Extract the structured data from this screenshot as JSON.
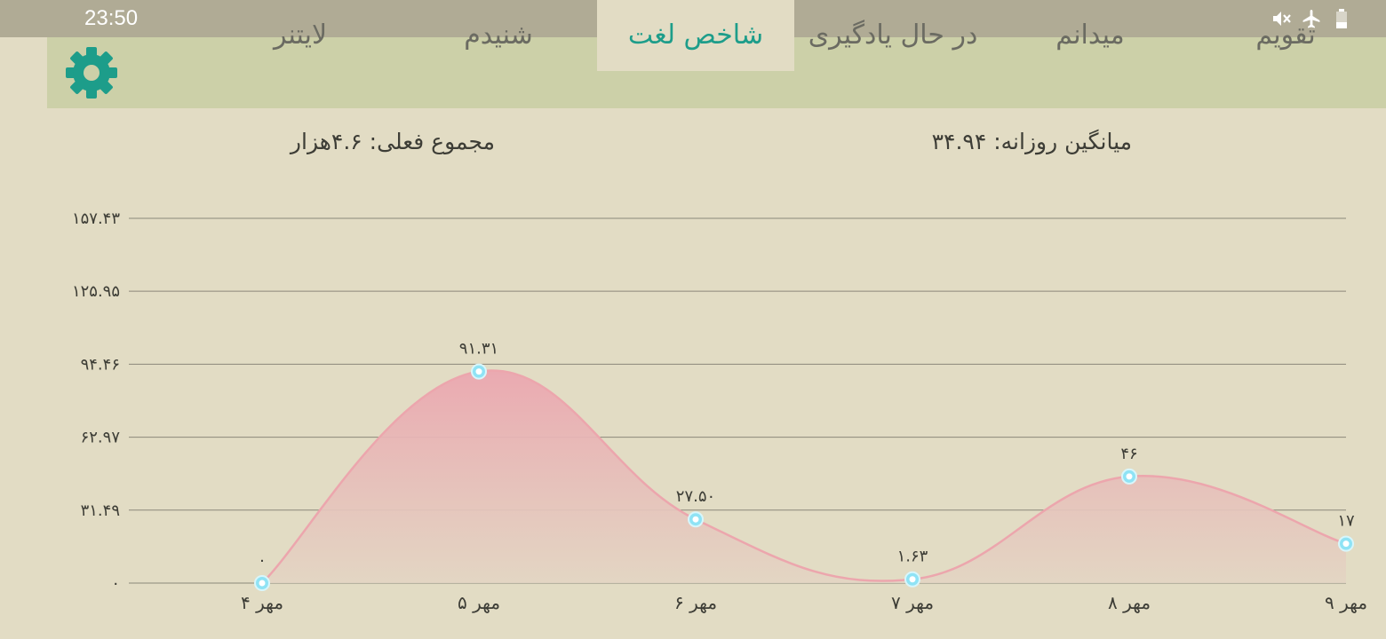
{
  "status_bar": {
    "time": "23:50",
    "icons": [
      "mute-icon",
      "airplane-mode-icon",
      "battery-icon"
    ]
  },
  "tabs": [
    {
      "label": "تقویم",
      "active": false
    },
    {
      "label": "میدانم",
      "active": false
    },
    {
      "label": "در حال یادگیری",
      "active": false
    },
    {
      "label": "شاخص لغت",
      "active": true
    },
    {
      "label": "شنیدم",
      "active": false
    },
    {
      "label": "لایتنر",
      "active": false
    }
  ],
  "settings_icon": "gear-icon",
  "summary": {
    "daily_average": "میانگین روزانه: ۳۴.۹۴",
    "current_total": "مجموع فعلی: ۴.۶هزار"
  },
  "colors": {
    "accent": "#1d9d8a",
    "fill": "#eba7b0",
    "line": "#eca6ad",
    "point": "#8fe3f5"
  },
  "chart_data": {
    "type": "area",
    "x": [
      "۴ مهر",
      "۵ مهر",
      "۶ مهر",
      "۷ مهر",
      "۸ مهر",
      "۹ مهر"
    ],
    "values": [
      0,
      91.31,
      27.5,
      1.63,
      46,
      17
    ],
    "value_labels": [
      "۰",
      "۹۱.۳۱",
      "۲۷.۵۰",
      "۱.۶۳",
      "۴۶",
      "۱۷"
    ],
    "yticks": [
      0,
      31.49,
      62.97,
      94.46,
      125.95,
      157.43
    ],
    "ytick_labels": [
      "۰",
      "۳۱.۴۹",
      "۶۲.۹۷",
      "۹۴.۴۶",
      "۱۲۵.۹۵",
      "۱۵۷.۴۳"
    ],
    "ylim": [
      0,
      157.43
    ],
    "grid": true,
    "smooth": true
  }
}
